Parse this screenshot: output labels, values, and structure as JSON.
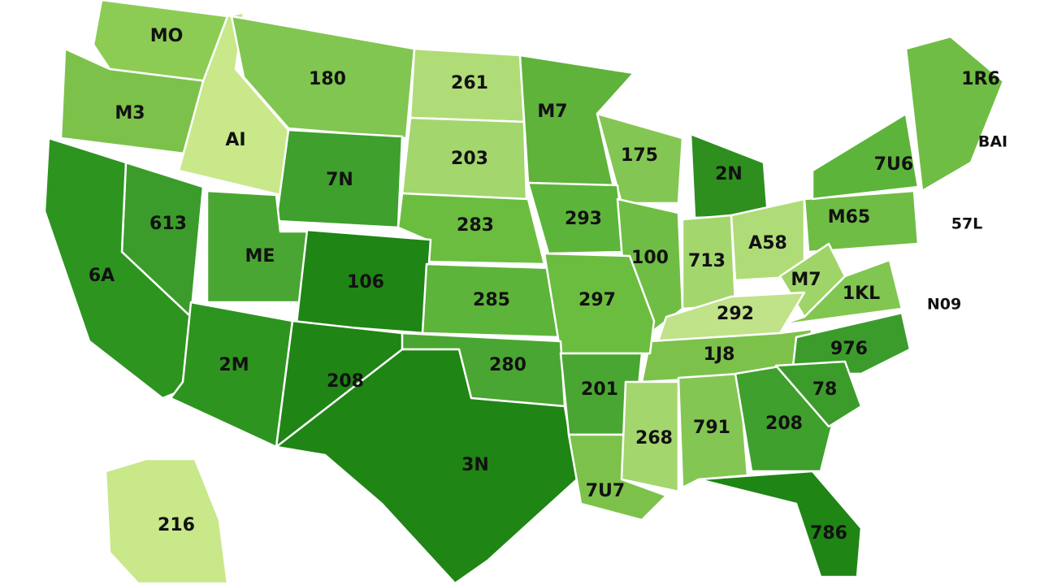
{
  "labels": [
    "MO",
    "180",
    "261",
    "M7",
    "1R6",
    "M3",
    "AI",
    "203",
    "175",
    "2N",
    "BAI",
    "7N",
    "7U6",
    "613",
    "283",
    "293",
    "M65",
    "57L",
    "ME",
    "6A",
    "106",
    "100",
    "713",
    "A58",
    "M7",
    "1KL",
    "N09",
    "285",
    "297",
    "292",
    "1J8",
    "976",
    "2M",
    "208",
    "280",
    "201",
    "78",
    "208",
    "268",
    "791",
    "3N",
    "7U7",
    "786",
    "216"
  ]
}
